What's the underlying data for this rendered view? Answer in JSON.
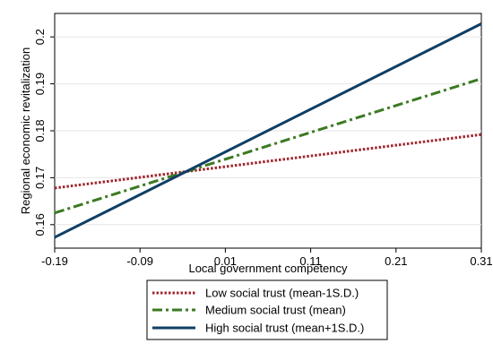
{
  "chart_data": {
    "type": "line",
    "title": "",
    "xlabel": "Local government competency",
    "ylabel": "Regional economic revitalization",
    "xlim": [
      -0.19,
      0.31
    ],
    "ylim": [
      0.155,
      0.205
    ],
    "x_ticks": [
      "-0.19",
      "-0.09",
      "0.01",
      "0.11",
      "0.21",
      "0.31"
    ],
    "y_ticks": [
      "0.16",
      "0.17",
      "0.18",
      "0.19",
      "0.2"
    ],
    "grid": true,
    "legend_position": "bottom",
    "series": [
      {
        "name": "Low social trust (mean-1S.D.)",
        "x": [
          -0.19,
          0.31
        ],
        "y": [
          0.1678,
          0.1792
        ],
        "color": "#a0262e",
        "style": "dotted"
      },
      {
        "name": "Medium social trust (mean)",
        "x": [
          -0.19,
          0.31
        ],
        "y": [
          0.1625,
          0.1911
        ],
        "color": "#3b7a22",
        "style": "dash-dot"
      },
      {
        "name": "High social trust (mean+1S.D.)",
        "x": [
          -0.19,
          0.31
        ],
        "y": [
          0.1573,
          0.2028
        ],
        "color": "#0f3f66",
        "style": "solid"
      }
    ]
  }
}
